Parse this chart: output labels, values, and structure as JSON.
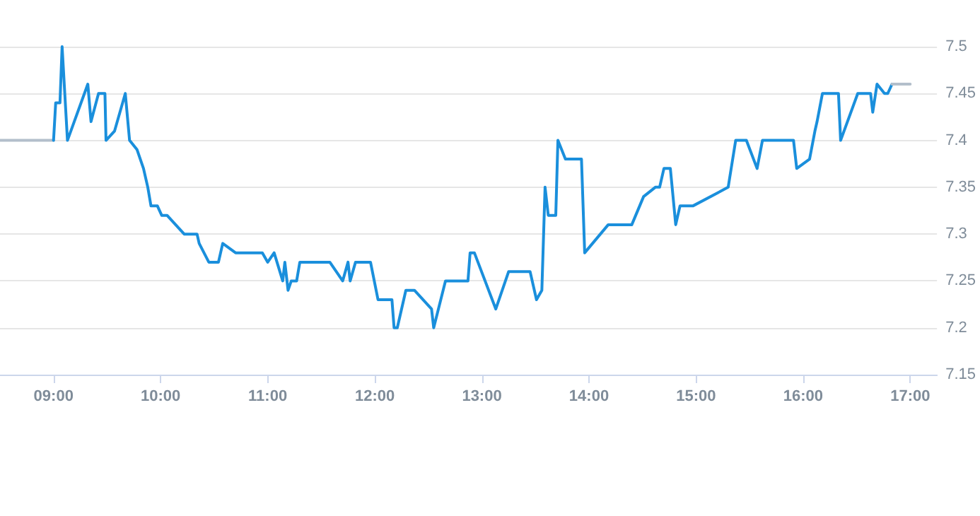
{
  "chart_data": {
    "type": "line",
    "xlim": [
      8.5,
      17.25
    ],
    "ylim": [
      7.15,
      7.5
    ],
    "xticks": [
      {
        "value": 9,
        "label": "09:00"
      },
      {
        "value": 10,
        "label": "10:00"
      },
      {
        "value": 11,
        "label": "11:00"
      },
      {
        "value": 12,
        "label": "12:00"
      },
      {
        "value": 13,
        "label": "13:00"
      },
      {
        "value": 14,
        "label": "14:00"
      },
      {
        "value": 15,
        "label": "15:00"
      },
      {
        "value": 16,
        "label": "16:00"
      },
      {
        "value": 17,
        "label": "17:00"
      }
    ],
    "yticks": [
      7.15,
      7.2,
      7.25,
      7.3,
      7.35,
      7.4,
      7.45,
      7.5
    ],
    "grid": "y",
    "marker": "none",
    "line_style": "solid",
    "series": [
      {
        "color": "#b3bfcb",
        "x": [
          8.5,
          9.0
        ],
        "values": [
          7.4,
          7.4
        ]
      },
      {
        "color": "#1a8fdc",
        "x": [
          9.0,
          9.02,
          9.06,
          9.08,
          9.13,
          9.32,
          9.35,
          9.42,
          9.48,
          9.49,
          9.57,
          9.67,
          9.71,
          9.78,
          9.84,
          9.88,
          9.91,
          9.97,
          10.01,
          10.06,
          10.22,
          10.34,
          10.36,
          10.45,
          10.54,
          10.58,
          10.7,
          10.95,
          11.0,
          11.06,
          11.14,
          11.16,
          11.19,
          11.22,
          11.27,
          11.3,
          11.58,
          11.7,
          11.75,
          11.77,
          11.82,
          11.96,
          12.03,
          12.16,
          12.18,
          12.21,
          12.29,
          12.37,
          12.53,
          12.55,
          12.66,
          12.87,
          12.89,
          12.93,
          13.13,
          13.25,
          13.45,
          13.51,
          13.56,
          13.59,
          13.62,
          13.69,
          13.71,
          13.78,
          13.93,
          13.96,
          14.18,
          14.4,
          14.51,
          14.62,
          14.66,
          14.7,
          14.76,
          14.81,
          14.85,
          14.97,
          15.3,
          15.37,
          15.47,
          15.57,
          15.62,
          15.91,
          15.94,
          16.06,
          16.11,
          16.13,
          16.18,
          16.33,
          16.35,
          16.51,
          16.63,
          16.65,
          16.69,
          16.76,
          16.79,
          16.83
        ],
        "values": [
          7.4,
          7.44,
          7.44,
          7.5,
          7.4,
          7.46,
          7.42,
          7.45,
          7.45,
          7.4,
          7.41,
          7.45,
          7.4,
          7.39,
          7.37,
          7.35,
          7.33,
          7.33,
          7.32,
          7.32,
          7.3,
          7.3,
          7.29,
          7.27,
          7.27,
          7.29,
          7.28,
          7.28,
          7.27,
          7.28,
          7.25,
          7.27,
          7.24,
          7.25,
          7.25,
          7.27,
          7.27,
          7.25,
          7.27,
          7.25,
          7.27,
          7.27,
          7.23,
          7.23,
          7.2,
          7.2,
          7.24,
          7.24,
          7.22,
          7.2,
          7.25,
          7.25,
          7.28,
          7.28,
          7.22,
          7.26,
          7.26,
          7.23,
          7.24,
          7.35,
          7.32,
          7.32,
          7.4,
          7.38,
          7.38,
          7.28,
          7.31,
          7.31,
          7.34,
          7.35,
          7.35,
          7.37,
          7.37,
          7.31,
          7.33,
          7.33,
          7.35,
          7.4,
          7.4,
          7.37,
          7.4,
          7.4,
          7.37,
          7.38,
          7.41,
          7.42,
          7.45,
          7.45,
          7.4,
          7.45,
          7.45,
          7.43,
          7.46,
          7.45,
          7.45,
          7.46
        ]
      },
      {
        "color": "#b3bfcb",
        "x": [
          16.83,
          17.0
        ],
        "values": [
          7.46,
          7.46
        ]
      }
    ]
  }
}
